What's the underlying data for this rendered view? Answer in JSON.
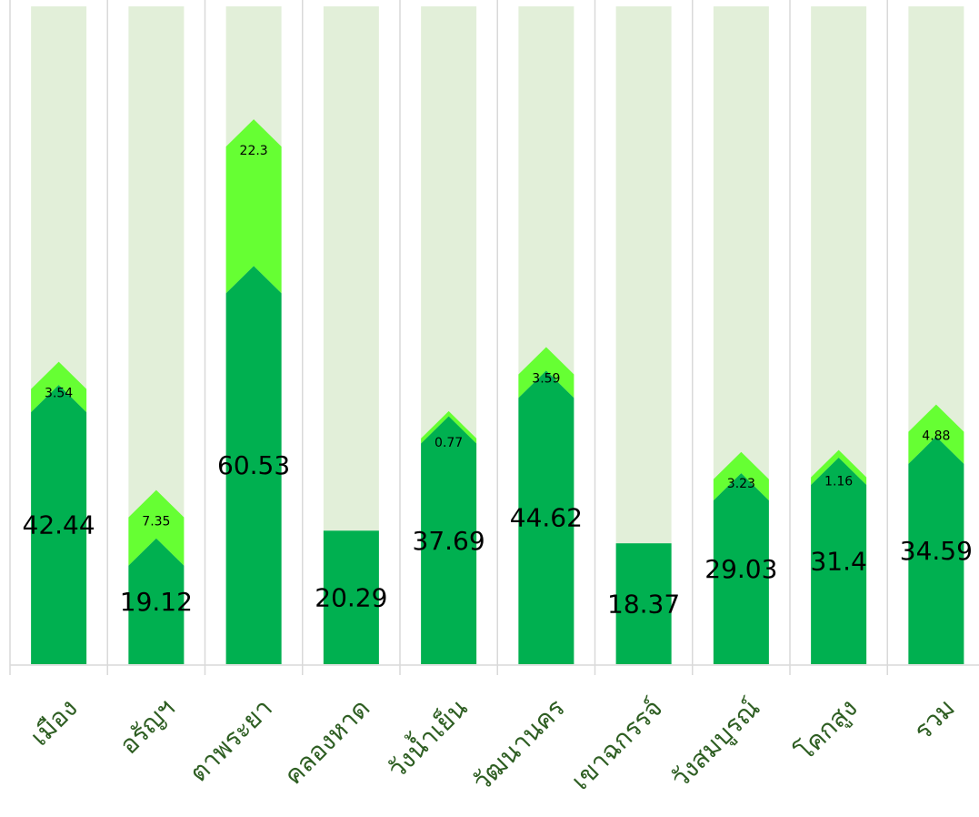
{
  "chart_data": {
    "type": "bar",
    "stacked": true,
    "categories": [
      "เมือง",
      "อรัญฯ",
      "ตาพระยา",
      "คลองหาด",
      "วังน้ำเย็น",
      "วัฒนานคร",
      "เขาฉกรรจ์",
      "วังสมบูรณ์",
      "โคกสูง",
      "รวม"
    ],
    "series": [
      {
        "values": [
          42.44,
          19.12,
          60.53,
          20.29,
          37.69,
          44.62,
          18.37,
          29.03,
          31.4,
          34.59
        ],
        "color": "#00b050"
      },
      {
        "values": [
          3.54,
          7.35,
          22.3,
          null,
          0.77,
          3.59,
          null,
          3.23,
          1.16,
          4.88
        ],
        "color": "#66ff33"
      }
    ],
    "background_color": "#e2efd9",
    "category_label_color": "#2e5e22",
    "ylim": [
      0,
      100
    ],
    "grid": true,
    "legend": "none"
  }
}
